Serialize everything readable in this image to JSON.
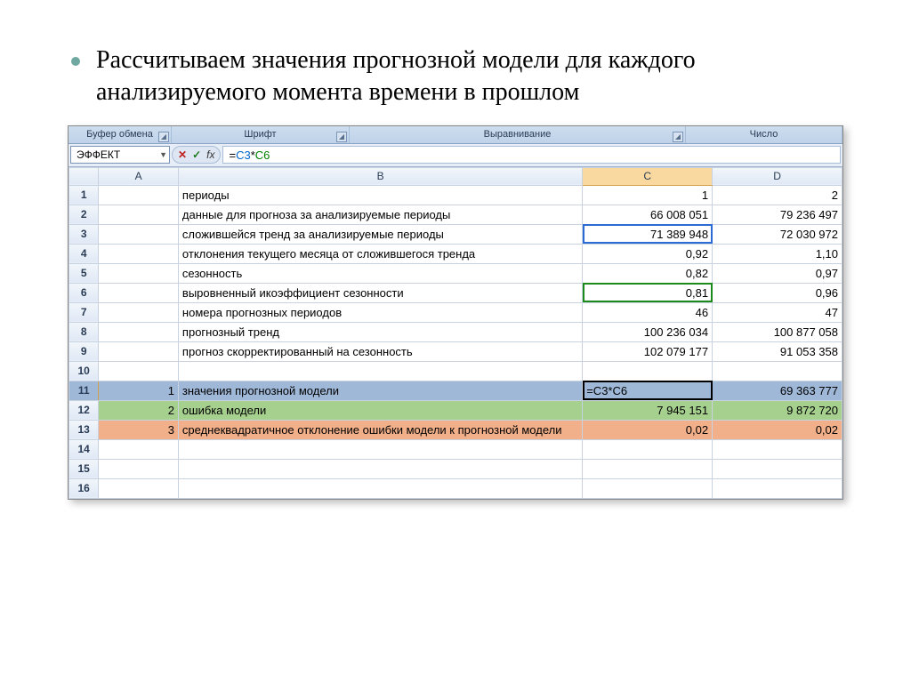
{
  "slide": {
    "bullet_text": "Рассчитываем значения прогнозной модели для каждого анализируемого момента времени в прошлом"
  },
  "ribbon": {
    "groups": {
      "clipboard": "Буфер обмена",
      "font": "Шрифт",
      "alignment": "Выравнивание",
      "number": "Число"
    }
  },
  "formula_bar": {
    "name_box_value": "ЭФФЕКТ",
    "formula_prefix": "=",
    "ref1": "C3",
    "operator": "*",
    "ref2": "C6",
    "formula_full": "=C3*C6"
  },
  "columns": [
    "A",
    "B",
    "C",
    "D"
  ],
  "rows": [
    {
      "n": 1,
      "A": "",
      "B": "периоды",
      "C": "1",
      "D": "2"
    },
    {
      "n": 2,
      "A": "",
      "B": "данные для прогноза за анализируемые периоды",
      "C": "66 008 051",
      "D": "79 236 497"
    },
    {
      "n": 3,
      "A": "",
      "B": "сложившейся тренд за анализируемые периоды",
      "C": "71 389 948",
      "D": "72 030 972"
    },
    {
      "n": 4,
      "A": "",
      "B": "отклонения текущего месяца от сложившегося тренда",
      "C": "0,92",
      "D": "1,10"
    },
    {
      "n": 5,
      "A": "",
      "B": "сезонность",
      "C": "0,82",
      "D": "0,97"
    },
    {
      "n": 6,
      "A": "",
      "B": "выровненный икоэффициент сезонности",
      "C": "0,81",
      "D": "0,96"
    },
    {
      "n": 7,
      "A": "",
      "B": "номера прогнозных периодов",
      "C": "46",
      "D": "47"
    },
    {
      "n": 8,
      "A": "",
      "B": "прогнозный тренд",
      "C": "100 236 034",
      "D": "100 877 058"
    },
    {
      "n": 9,
      "A": "",
      "B": "прогноз скорректированный на сезонность",
      "C": "102 079 177",
      "D": "91 053 358"
    },
    {
      "n": 10,
      "A": "",
      "B": "",
      "C": "",
      "D": ""
    },
    {
      "n": 11,
      "A": "1",
      "B": "значения прогнозной модели",
      "C": "=C3*C6",
      "D": "69 363 777",
      "style": "selected",
      "active_c": true
    },
    {
      "n": 12,
      "A": "2",
      "B": "ошибка модели",
      "C": "7 945 151",
      "D": "9 872 720",
      "style": "green"
    },
    {
      "n": 13,
      "A": "3",
      "B": "среднеквадратичное отклонение ошибки модели к прогнозной модели",
      "C": "0,02",
      "D": "0,02",
      "style": "orange"
    },
    {
      "n": 14,
      "A": "",
      "B": "",
      "C": "",
      "D": ""
    },
    {
      "n": 15,
      "A": "",
      "B": "",
      "C": "",
      "D": ""
    },
    {
      "n": 16,
      "A": "",
      "B": "",
      "C": "",
      "D": ""
    }
  ],
  "active_cell": "C11",
  "selection_blue": "C3",
  "selection_green": "C6",
  "colors": {
    "row_selected_bg": "#9fb8d8",
    "row_green_bg": "#a6d08e",
    "row_orange_bg": "#f2b08a",
    "header_bg_top": "#f2f6fb",
    "header_bg_bot": "#dfe8f5",
    "grid_border": "#c8d2e0",
    "ribbon_bg": "#cdddef",
    "bullet_color": "#6fa8a0"
  }
}
